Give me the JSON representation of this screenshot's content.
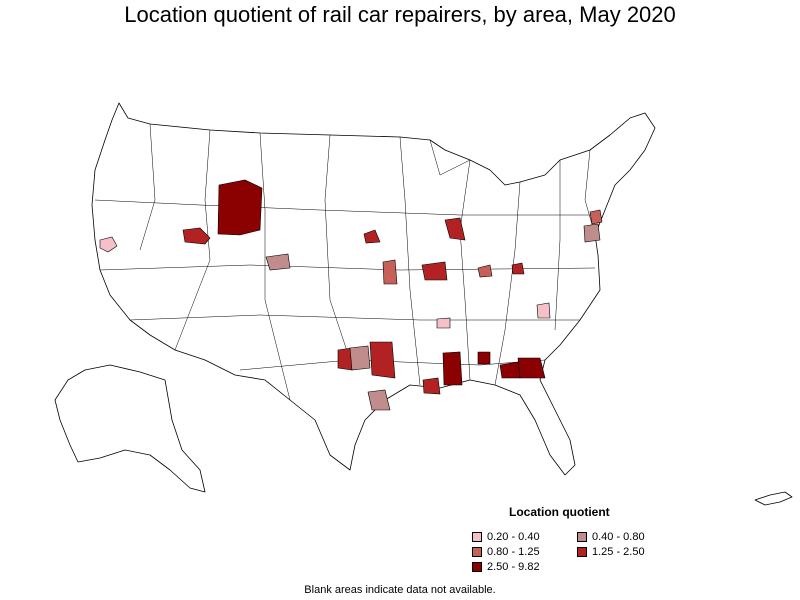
{
  "title": "Location quotient of rail car repairers, by area, May 2020",
  "legend": {
    "title": "Location quotient",
    "items": [
      {
        "label": "0.20 - 0.40",
        "color": "#f6c0c8"
      },
      {
        "label": "0.40 - 0.80",
        "color": "#c08c8c"
      },
      {
        "label": "0.80 - 1.25",
        "color": "#c8605a"
      },
      {
        "label": "1.25 - 2.50",
        "color": "#b22222"
      },
      {
        "label": "2.50 - 9.82",
        "color": "#8b0000"
      }
    ]
  },
  "footnote": "Blank areas indicate data not available.",
  "colors": {
    "outline": "#000000",
    "background": "#ffffff"
  }
}
